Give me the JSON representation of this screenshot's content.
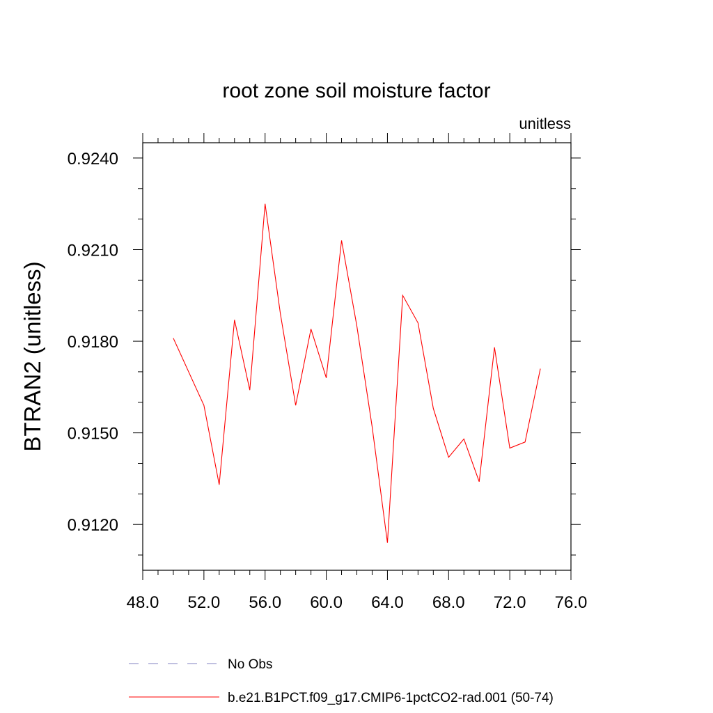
{
  "chart_data": {
    "type": "line",
    "title": "root zone soil moisture factor",
    "units_label": "unitless",
    "xlabel": "",
    "ylabel": "BTRAN2  (unitless)",
    "xlim": [
      48,
      76
    ],
    "ylim": [
      0.9105,
      0.9245
    ],
    "x_ticks": [
      "48.0",
      "52.0",
      "56.0",
      "60.0",
      "64.0",
      "68.0",
      "72.0",
      "76.0"
    ],
    "y_ticks": [
      "0.9120",
      "0.9150",
      "0.9180",
      "0.9210",
      "0.9240"
    ],
    "grid": false,
    "legend_position": "bottom",
    "series": [
      {
        "name": "No Obs",
        "color": "#8080c0",
        "dash": "dashed",
        "x": [],
        "values": []
      },
      {
        "name": "b.e21.B1PCT.f09_g17.CMIP6-1pctCO2-rad.001 (50-74)",
        "color": "#ff0000",
        "dash": "solid",
        "x": [
          50,
          51,
          52,
          53,
          54,
          55,
          56,
          57,
          58,
          59,
          60,
          61,
          62,
          63,
          64,
          65,
          66,
          67,
          68,
          69,
          70,
          71,
          72,
          73,
          74
        ],
        "values": [
          0.9181,
          0.917,
          0.9159,
          0.9133,
          0.9187,
          0.9164,
          0.9225,
          0.9189,
          0.9159,
          0.9184,
          0.9168,
          0.9213,
          0.9185,
          0.9152,
          0.9114,
          0.9195,
          0.9186,
          0.9158,
          0.9142,
          0.9148,
          0.9134,
          0.9178,
          0.9145,
          0.9147,
          0.9171
        ]
      }
    ]
  }
}
